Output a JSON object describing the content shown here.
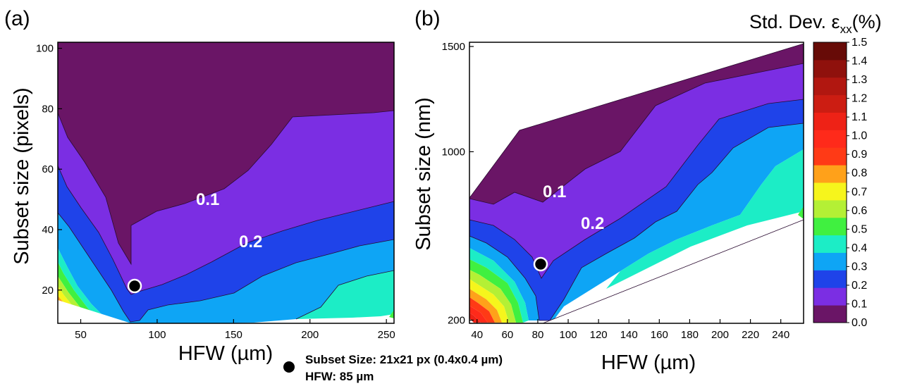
{
  "colors": {
    "levels": [
      "#6a1566",
      "#7b2ee3",
      "#1f43e9",
      "#0ea5f5",
      "#1cedc6",
      "#40f040",
      "#b4f035",
      "#f6f51c",
      "#ffa11a",
      "#ff3a16",
      "#ff2a1a",
      "#ee2216",
      "#cc1d12",
      "#b11710",
      "#8f110c",
      "#670b07"
    ],
    "background": "#ffffff"
  },
  "chart_data": [
    {
      "type": "contour",
      "panel_label": "(a)",
      "xlabel": "HFW (µm)",
      "ylabel": "Subset size (pixels)",
      "xlim": [
        35,
        255
      ],
      "ylim": [
        9,
        102
      ],
      "x_ticks": [
        "50",
        "100",
        "150",
        "200",
        "250"
      ],
      "y_ticks": [
        "20",
        "40",
        "60",
        "80",
        "100"
      ],
      "contour_labels": [
        "0.1",
        "0.2"
      ],
      "marker": {
        "x": 85,
        "y": 21
      }
    },
    {
      "type": "contour",
      "panel_label": "(b)",
      "xlabel": "HFW (µm)",
      "ylabel": "Subset size (nm)",
      "xlim": [
        35,
        255
      ],
      "ylim": [
        185,
        1520
      ],
      "x_ticks": [
        "40",
        "60",
        "80",
        "100",
        "120",
        "140",
        "160",
        "180",
        "200",
        "220",
        "240"
      ],
      "y_ticks": [
        "200",
        "1000",
        "1500"
      ],
      "contour_labels": [
        "0.1",
        "0.2"
      ],
      "marker": {
        "x": 85,
        "y": 400
      }
    }
  ],
  "colorbar": {
    "title": "Std. Dev. ε",
    "title_sub": "xx",
    "title_suffix": "(%)",
    "ticks": [
      "1.5",
      "1.4",
      "1.3",
      "1.2",
      "1.1",
      "1.0",
      "0.9",
      "0.8",
      "0.7",
      "0.6",
      "0.5",
      "0.4",
      "0.3",
      "0.2",
      "0.1",
      "0.0"
    ]
  },
  "legend": {
    "line1": "Subset Size: 21x21 px (0.4x0.4 µm)",
    "line2": "HFW: 85 µm"
  }
}
